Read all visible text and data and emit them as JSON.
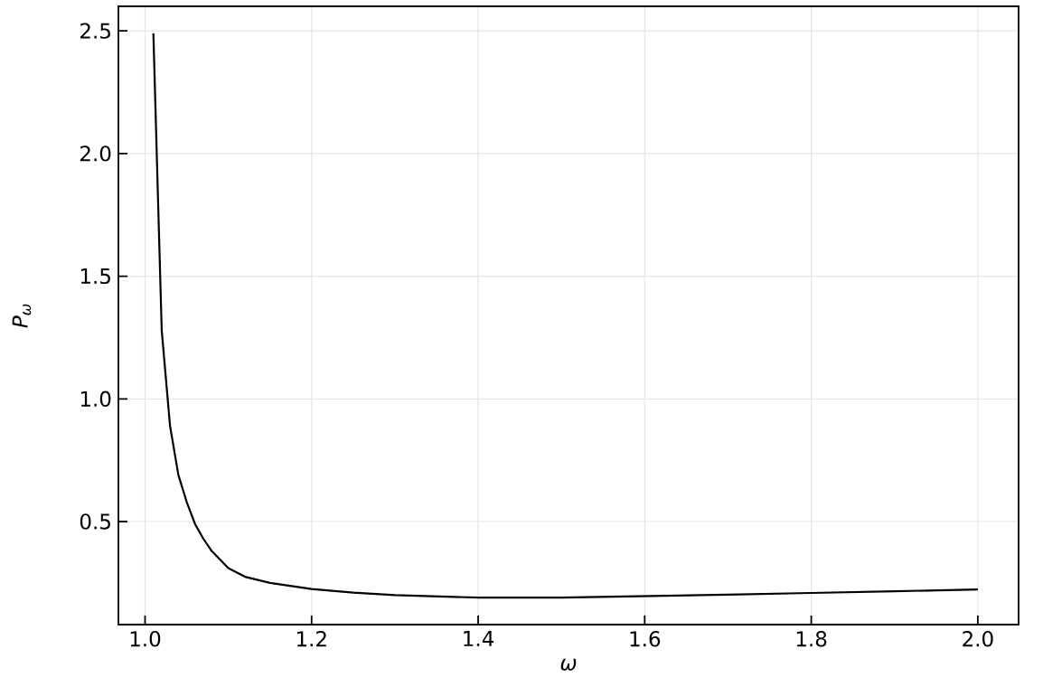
{
  "chart_data": {
    "type": "line",
    "xlabel": "ω",
    "ylabel": "P$_{ω}$",
    "x": [
      1.01,
      1.02,
      1.03,
      1.04,
      1.05,
      1.06,
      1.07,
      1.08,
      1.1,
      1.12,
      1.15,
      1.2,
      1.25,
      1.3,
      1.4,
      1.5,
      1.6,
      1.7,
      1.8,
      1.9,
      2.0
    ],
    "series": [
      {
        "color": "#000000",
        "values": [
          2.49,
          1.28,
          0.89,
          0.69,
          0.58,
          0.49,
          0.43,
          0.38,
          0.31,
          0.275,
          0.25,
          0.225,
          0.21,
          0.2,
          0.19,
          0.19,
          0.196,
          0.202,
          0.209,
          0.216,
          0.223
        ]
      }
    ],
    "xlim": [
      0.968,
      2.049
    ],
    "ylim": [
      0.08,
      2.6
    ],
    "xticks": [
      {
        "value": 1,
        "label": "1.0"
      },
      1.2,
      1.4,
      1.6,
      1.8,
      {
        "value": 2,
        "label": "2.0"
      }
    ],
    "yticks": [
      0.5,
      {
        "value": 1,
        "label": "1.0"
      },
      1.5,
      {
        "value": 2,
        "label": "2.0"
      },
      2.5
    ],
    "grid": true,
    "marker": "none",
    "line_style": "solid"
  }
}
